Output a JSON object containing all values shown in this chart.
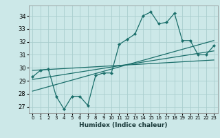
{
  "xlabel": "Humidex (Indice chaleur)",
  "x_ticks": [
    0,
    1,
    2,
    3,
    4,
    5,
    6,
    7,
    8,
    9,
    10,
    11,
    12,
    13,
    14,
    15,
    16,
    17,
    18,
    19,
    20,
    21,
    22,
    23
  ],
  "y_ticks": [
    27,
    28,
    29,
    30,
    31,
    32,
    33,
    34
  ],
  "ylim": [
    26.5,
    34.8
  ],
  "xlim": [
    -0.5,
    23.5
  ],
  "bg_color": "#cce8e8",
  "grid_color": "#aacece",
  "line_color": "#1a6e6a",
  "scatter_points": [
    [
      0,
      29.3
    ],
    [
      1,
      29.8
    ],
    [
      2,
      29.9
    ],
    [
      3,
      27.8
    ],
    [
      4,
      26.8
    ],
    [
      5,
      27.8
    ],
    [
      6,
      27.8
    ],
    [
      7,
      27.1
    ],
    [
      8,
      29.4
    ],
    [
      9,
      29.6
    ],
    [
      10,
      29.6
    ],
    [
      11,
      31.8
    ],
    [
      12,
      32.2
    ],
    [
      13,
      32.6
    ],
    [
      14,
      34.0
    ],
    [
      15,
      34.3
    ],
    [
      16,
      33.4
    ],
    [
      17,
      33.5
    ],
    [
      18,
      34.2
    ],
    [
      19,
      32.1
    ],
    [
      20,
      32.1
    ],
    [
      21,
      31.0
    ],
    [
      22,
      31.0
    ],
    [
      23,
      31.7
    ]
  ],
  "regression_line1": [
    [
      0,
      28.2
    ],
    [
      23,
      32.1
    ]
  ],
  "regression_line2": [
    [
      0,
      29.1
    ],
    [
      23,
      31.3
    ]
  ],
  "regression_line3": [
    [
      0,
      29.8
    ],
    [
      23,
      30.6
    ]
  ]
}
